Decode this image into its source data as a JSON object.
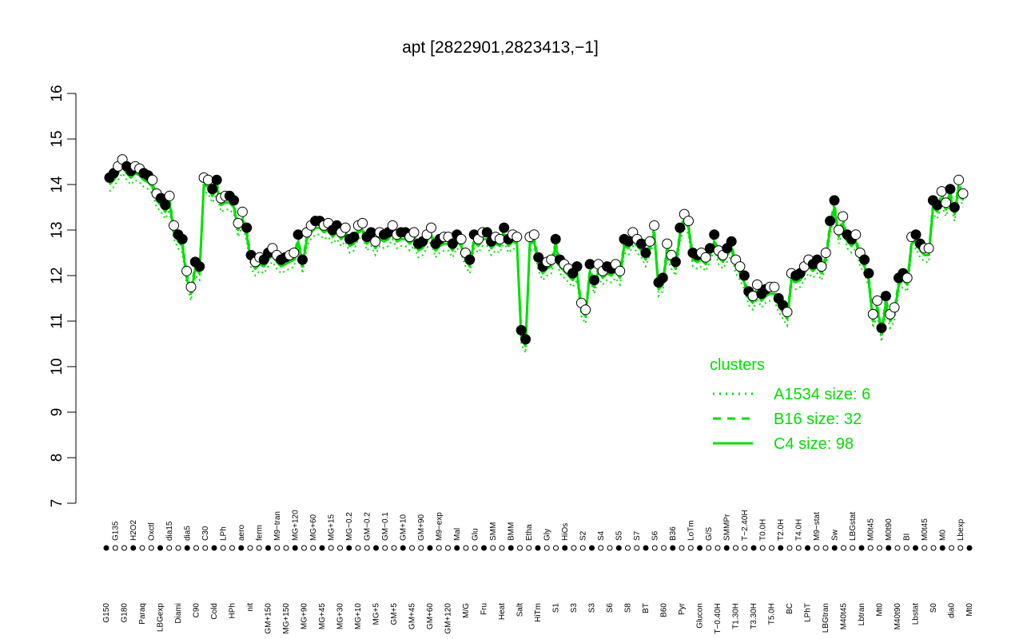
{
  "chart_data": {
    "type": "line",
    "title": "apt [2822901,2823413,−1]",
    "xlabel": "",
    "ylabel": "",
    "ylim": [
      7,
      16
    ],
    "yticks": [
      7,
      8,
      9,
      10,
      11,
      12,
      13,
      14,
      15,
      16
    ],
    "grid": false,
    "legend_position": "bottom-right",
    "legend_title": "clusters",
    "colors": {
      "line": "#00e000",
      "points_fill_a": "#000000",
      "points_fill_b": "#ffffff",
      "legend_text": "#00e000"
    },
    "legend": [
      {
        "name": "A1534 size: 6",
        "style": "dotted"
      },
      {
        "name": "B16 size: 32",
        "style": "dashed"
      },
      {
        "name": "C4 size: 98",
        "style": "solid"
      }
    ],
    "x_labels": [
      {
        "row": "top",
        "text": "G135"
      },
      {
        "row": "top",
        "text": "H2O2"
      },
      {
        "row": "top",
        "text": "Oxctl"
      },
      {
        "row": "top",
        "text": "dia15"
      },
      {
        "row": "top",
        "text": "dia5"
      },
      {
        "row": "top",
        "text": "C30"
      },
      {
        "row": "top",
        "text": "LPh"
      },
      {
        "row": "top",
        "text": "aero"
      },
      {
        "row": "top",
        "text": "ferm"
      },
      {
        "row": "top",
        "text": "M9−tran"
      },
      {
        "row": "top",
        "text": "MG+120"
      },
      {
        "row": "top",
        "text": "MG+60"
      },
      {
        "row": "top",
        "text": "MG+15"
      },
      {
        "row": "top",
        "text": "MG−0.2"
      },
      {
        "row": "top",
        "text": "GM−0.2"
      },
      {
        "row": "top",
        "text": "GM−0.1"
      },
      {
        "row": "top",
        "text": "GM+10"
      },
      {
        "row": "top",
        "text": "GM+90"
      },
      {
        "row": "top",
        "text": "M9−exp"
      },
      {
        "row": "top",
        "text": "Mal"
      },
      {
        "row": "top",
        "text": "Glu"
      },
      {
        "row": "top",
        "text": "SMM"
      },
      {
        "row": "top",
        "text": "BMM"
      },
      {
        "row": "top",
        "text": "Etha"
      },
      {
        "row": "top",
        "text": "Gly"
      },
      {
        "row": "top",
        "text": "HiOs"
      },
      {
        "row": "top",
        "text": "S2"
      },
      {
        "row": "top",
        "text": "S4"
      },
      {
        "row": "top",
        "text": "S5"
      },
      {
        "row": "top",
        "text": "S7"
      },
      {
        "row": "top",
        "text": "S6"
      },
      {
        "row": "top",
        "text": "B36"
      },
      {
        "row": "top",
        "text": "LoTm"
      },
      {
        "row": "top",
        "text": "G/S"
      },
      {
        "row": "top",
        "text": "SMMPr"
      },
      {
        "row": "top",
        "text": "T−2.40H"
      },
      {
        "row": "top",
        "text": "T0.0H"
      },
      {
        "row": "top",
        "text": "T2.0H"
      },
      {
        "row": "top",
        "text": "T4.0H"
      },
      {
        "row": "top",
        "text": "M9−stat"
      },
      {
        "row": "top",
        "text": "Sw"
      },
      {
        "row": "top",
        "text": "LBGstat"
      },
      {
        "row": "top",
        "text": "M0t45"
      },
      {
        "row": "top",
        "text": "M0t90"
      },
      {
        "row": "top",
        "text": "BI"
      },
      {
        "row": "top",
        "text": "M0t45"
      },
      {
        "row": "top",
        "text": "M0"
      },
      {
        "row": "top",
        "text": "Lbexp"
      },
      {
        "row": "bottom",
        "text": "G150"
      },
      {
        "row": "bottom",
        "text": "G180"
      },
      {
        "row": "bottom",
        "text": "Paraq"
      },
      {
        "row": "bottom",
        "text": "LBGexp"
      },
      {
        "row": "bottom",
        "text": "Diami"
      },
      {
        "row": "bottom",
        "text": "C90"
      },
      {
        "row": "bottom",
        "text": "Cold"
      },
      {
        "row": "bottom",
        "text": "HPh"
      },
      {
        "row": "bottom",
        "text": "nit"
      },
      {
        "row": "bottom",
        "text": "GM+150"
      },
      {
        "row": "bottom",
        "text": "MG+150"
      },
      {
        "row": "bottom",
        "text": "MG+90"
      },
      {
        "row": "bottom",
        "text": "MG+45"
      },
      {
        "row": "bottom",
        "text": "MG+30"
      },
      {
        "row": "bottom",
        "text": "MG+10"
      },
      {
        "row": "bottom",
        "text": "MG+5"
      },
      {
        "row": "bottom",
        "text": "GM+5"
      },
      {
        "row": "bottom",
        "text": "GM+45"
      },
      {
        "row": "bottom",
        "text": "GM+60"
      },
      {
        "row": "bottom",
        "text": "GM+120"
      },
      {
        "row": "bottom",
        "text": "M/G"
      },
      {
        "row": "bottom",
        "text": "Fru"
      },
      {
        "row": "bottom",
        "text": "Heat"
      },
      {
        "row": "bottom",
        "text": "Salt"
      },
      {
        "row": "bottom",
        "text": "HiTm"
      },
      {
        "row": "bottom",
        "text": "S1"
      },
      {
        "row": "bottom",
        "text": "S3"
      },
      {
        "row": "bottom",
        "text": "S3"
      },
      {
        "row": "bottom",
        "text": "S6"
      },
      {
        "row": "bottom",
        "text": "S8"
      },
      {
        "row": "bottom",
        "text": "BT"
      },
      {
        "row": "bottom",
        "text": "B60"
      },
      {
        "row": "bottom",
        "text": "Pyr"
      },
      {
        "row": "bottom",
        "text": "Glucon"
      },
      {
        "row": "bottom",
        "text": "T−0.40H"
      },
      {
        "row": "bottom",
        "text": "T1.30H"
      },
      {
        "row": "bottom",
        "text": "T3.30H"
      },
      {
        "row": "bottom",
        "text": "T5.0H"
      },
      {
        "row": "bottom",
        "text": "BC"
      },
      {
        "row": "bottom",
        "text": "LPhT"
      },
      {
        "row": "bottom",
        "text": "LBGtran"
      },
      {
        "row": "bottom",
        "text": "M40t45"
      },
      {
        "row": "bottom",
        "text": "Lbtran"
      },
      {
        "row": "bottom",
        "text": "Mt0"
      },
      {
        "row": "bottom",
        "text": "M40t90"
      },
      {
        "row": "bottom",
        "text": "Lbstat"
      },
      {
        "row": "bottom",
        "text": "S0"
      },
      {
        "row": "bottom",
        "text": "dia0"
      },
      {
        "row": "bottom",
        "text": "Mt0"
      }
    ],
    "series": [
      {
        "values": [
          14.15,
          14.25,
          14.4,
          14.55,
          14.4,
          14.3,
          14.4,
          14.35,
          14.25,
          14.2,
          14.1,
          13.8,
          13.7,
          13.55,
          13.75,
          13.1,
          12.9,
          12.8,
          12.1,
          11.75,
          12.3,
          12.2,
          14.15,
          14.1,
          13.9,
          14.1,
          13.7,
          13.75,
          13.75,
          13.65,
          13.15,
          13.4,
          13.05,
          12.45,
          12.3,
          12.4,
          12.35,
          12.5,
          12.6,
          12.45,
          12.35,
          12.4,
          12.45,
          12.5,
          12.9,
          12.35,
          12.95,
          13.1,
          13.2,
          13.2,
          13.1,
          13.15,
          13.0,
          13.1,
          12.95,
          13.05,
          12.8,
          12.85,
          13.1,
          13.15,
          12.85,
          12.95,
          12.75,
          12.95,
          12.9,
          12.95,
          13.1,
          12.9,
          12.95,
          12.95,
          12.85,
          12.95,
          12.7,
          12.75,
          12.9,
          13.05,
          12.7,
          12.8,
          12.85,
          12.85,
          12.7,
          12.9,
          12.8,
          12.5,
          12.35,
          12.9,
          12.8,
          12.95,
          12.95,
          12.75,
          12.85,
          12.8,
          13.05,
          12.8,
          12.9,
          12.85,
          10.8,
          10.6,
          12.85,
          12.9,
          12.4,
          12.2,
          12.3,
          12.35,
          12.8,
          12.35,
          12.25,
          12.15,
          12.05,
          12.2,
          11.4,
          11.25,
          12.25,
          11.9,
          12.25,
          12.1,
          12.2,
          12.15,
          12.25,
          12.1,
          12.8,
          12.75,
          12.95,
          12.8,
          12.7,
          12.5,
          12.75,
          13.1,
          11.85,
          11.95,
          12.7,
          12.45,
          12.3,
          13.05,
          13.35,
          13.2,
          12.5,
          12.45,
          12.5,
          12.4,
          12.6,
          12.9,
          12.55,
          12.45,
          12.6,
          12.75,
          12.35,
          12.2,
          12.0,
          11.65,
          11.55,
          11.8,
          11.6,
          11.7,
          11.75,
          11.75,
          11.5,
          11.35,
          11.2,
          12.05,
          12.0,
          12.05,
          12.2,
          12.35,
          12.25,
          12.35,
          12.2,
          12.5,
          13.2,
          13.65,
          13.0,
          13.3,
          12.9,
          12.8,
          12.9,
          12.5,
          12.35,
          12.05,
          11.15,
          11.45,
          10.85,
          11.55,
          11.15,
          11.3,
          11.95,
          12.05,
          11.95,
          12.85,
          12.9,
          12.7,
          12.6,
          12.6,
          13.65,
          13.55,
          13.85,
          13.6,
          13.9,
          13.5,
          14.1,
          13.8
        ]
      }
    ]
  }
}
